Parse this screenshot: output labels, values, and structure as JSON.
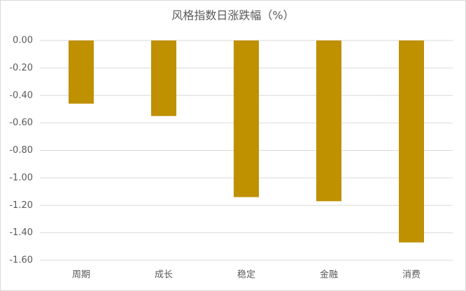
{
  "chart_data": {
    "type": "bar",
    "title": "风格指数日涨跌幅（%）",
    "categories": [
      "周期",
      "成长",
      "稳定",
      "金融",
      "消费"
    ],
    "values": [
      -0.46,
      -0.55,
      -1.14,
      -1.17,
      -1.47
    ],
    "color": "#bf9000",
    "ylim": [
      -1.6,
      0
    ],
    "yticks": [
      {
        "value": 0,
        "label": "0.00"
      },
      {
        "value": -0.2,
        "label": "-0.20"
      },
      {
        "value": -0.4,
        "label": "-0.40"
      },
      {
        "value": -0.6,
        "label": "-0.60"
      },
      {
        "value": -0.8,
        "label": "-0.80"
      },
      {
        "value": -1.0,
        "label": "-1.00"
      },
      {
        "value": -1.2,
        "label": "-1.20"
      },
      {
        "value": -1.4,
        "label": "-1.40"
      },
      {
        "value": -1.6,
        "label": "-1.60"
      }
    ],
    "grid": true
  }
}
